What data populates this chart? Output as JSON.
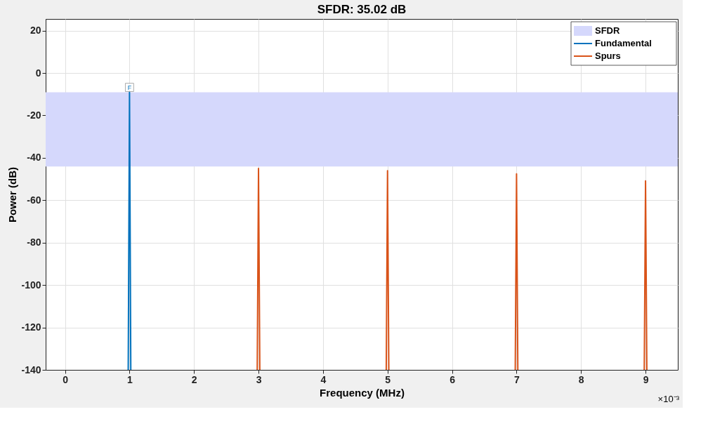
{
  "chart_data": {
    "type": "line",
    "title": "SFDR:  35.02 dB",
    "xlabel": "Frequency (MHz)",
    "ylabel": "Power (dB)",
    "series": [
      {
        "name": "Fundamental",
        "color": "#0072bd",
        "x": [
          0.98,
          1,
          1.02
        ],
        "values": [
          -140,
          -9.1,
          -140
        ]
      },
      {
        "name": "Spurs",
        "color": "#d95319",
        "x": [
          2.98,
          3,
          3.02,
          4,
          4.98,
          5,
          5.02,
          6,
          6.98,
          7,
          7.02,
          8,
          8.98,
          9,
          9.02
        ],
        "values": [
          -140,
          -45,
          -140,
          null,
          -140,
          -46.1,
          -140,
          null,
          -140,
          -47.6,
          -140,
          null,
          -140,
          -50.9,
          -140
        ]
      }
    ],
    "bands": [
      {
        "axis": "y",
        "from": -44.1,
        "to": -9.1,
        "label": "SFDR",
        "color": "#d5d8fc"
      }
    ],
    "annotations": [
      {
        "text": "F",
        "x": 1,
        "y": -9.1
      },
      "×10⁻³"
    ],
    "xlim": [
      -0.3,
      9.5
    ],
    "ylim": [
      -140,
      25.5
    ],
    "xticks": [
      0,
      1,
      2,
      3,
      4,
      5,
      6,
      7,
      8,
      9
    ],
    "yticks": [
      -140,
      -120,
      -100,
      -80,
      -60,
      -40,
      -20,
      0,
      20
    ],
    "grid": true,
    "legend": "top right",
    "line_style": "solid",
    "marker": "none"
  }
}
